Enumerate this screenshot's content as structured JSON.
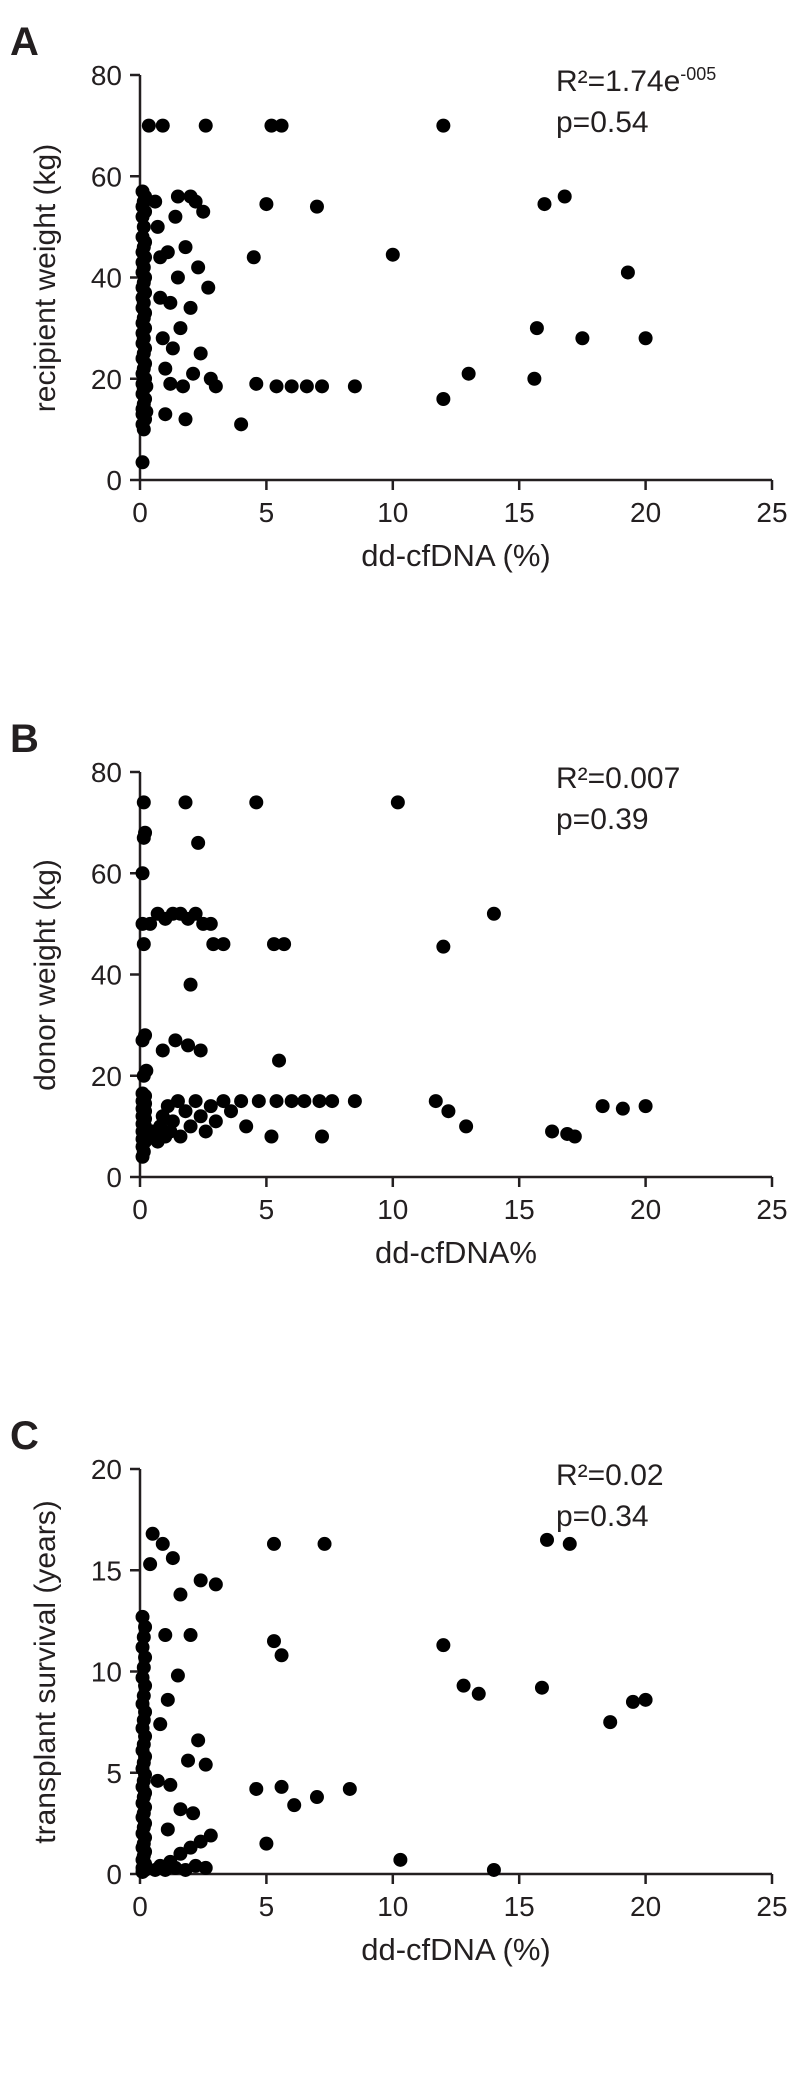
{
  "figure": {
    "background": "#ffffff",
    "point_color": "#000000",
    "axis_color": "#231f20"
  },
  "chart_data": [
    {
      "type": "scatter",
      "panel": "A",
      "title": "",
      "xlabel": "dd-cfDNA (%)",
      "ylabel": "recipient weight (kg)",
      "xlim": [
        0,
        25
      ],
      "ylim": [
        0,
        80
      ],
      "xticks": [
        0,
        5,
        10,
        15,
        20,
        25
      ],
      "yticks": [
        0,
        20,
        40,
        60,
        80
      ],
      "grid": false,
      "legend": null,
      "annotation": {
        "r2_base": "R²=1.74e",
        "r2_exp": "-005",
        "p": "p=0.54"
      },
      "points": [
        [
          0.1,
          3.5
        ],
        [
          0.15,
          10
        ],
        [
          0.1,
          11
        ],
        [
          0.2,
          12
        ],
        [
          0.1,
          13
        ],
        [
          0.25,
          13.5
        ],
        [
          0.1,
          14
        ],
        [
          0.15,
          15
        ],
        [
          0.2,
          16
        ],
        [
          0.1,
          17
        ],
        [
          0.15,
          18
        ],
        [
          0.25,
          18.5
        ],
        [
          0.1,
          19
        ],
        [
          0.2,
          20
        ],
        [
          0.1,
          21
        ],
        [
          0.15,
          22
        ],
        [
          0.2,
          23
        ],
        [
          0.1,
          24
        ],
        [
          0.15,
          25
        ],
        [
          0.2,
          26
        ],
        [
          0.1,
          27
        ],
        [
          0.15,
          28
        ],
        [
          0.1,
          29
        ],
        [
          0.2,
          30
        ],
        [
          0.1,
          31
        ],
        [
          0.15,
          32
        ],
        [
          0.2,
          33
        ],
        [
          0.1,
          34
        ],
        [
          0.15,
          35
        ],
        [
          0.1,
          36
        ],
        [
          0.2,
          37
        ],
        [
          0.1,
          38
        ],
        [
          0.15,
          39
        ],
        [
          0.2,
          40
        ],
        [
          0.1,
          41
        ],
        [
          0.15,
          42
        ],
        [
          0.1,
          43
        ],
        [
          0.2,
          44
        ],
        [
          0.1,
          45
        ],
        [
          0.15,
          46
        ],
        [
          0.2,
          47
        ],
        [
          0.1,
          48
        ],
        [
          0.15,
          50
        ],
        [
          0.1,
          52
        ],
        [
          0.2,
          53
        ],
        [
          0.1,
          54
        ],
        [
          0.15,
          55
        ],
        [
          0.2,
          56
        ],
        [
          0.1,
          57
        ],
        [
          0.35,
          70
        ],
        [
          0.9,
          70
        ],
        [
          0.6,
          55
        ],
        [
          0.7,
          50
        ],
        [
          0.8,
          44
        ],
        [
          0.8,
          36
        ],
        [
          0.9,
          28
        ],
        [
          1.0,
          22
        ],
        [
          1.0,
          13
        ],
        [
          1.1,
          45
        ],
        [
          1.2,
          35
        ],
        [
          1.2,
          19
        ],
        [
          1.3,
          26
        ],
        [
          1.4,
          52
        ],
        [
          1.5,
          56
        ],
        [
          1.5,
          40
        ],
        [
          1.6,
          30
        ],
        [
          1.7,
          18.5
        ],
        [
          1.8,
          46
        ],
        [
          1.8,
          12
        ],
        [
          2.0,
          56
        ],
        [
          2.0,
          34
        ],
        [
          2.1,
          21
        ],
        [
          2.2,
          55
        ],
        [
          2.3,
          42
        ],
        [
          2.4,
          25
        ],
        [
          2.5,
          53
        ],
        [
          2.6,
          70
        ],
        [
          2.7,
          38
        ],
        [
          2.8,
          20
        ],
        [
          3.0,
          18.5
        ],
        [
          4.0,
          11
        ],
        [
          4.5,
          44
        ],
        [
          4.6,
          19
        ],
        [
          5.0,
          54.5
        ],
        [
          5.2,
          70
        ],
        [
          5.6,
          70
        ],
        [
          5.4,
          18.5
        ],
        [
          6.0,
          18.5
        ],
        [
          6.6,
          18.5
        ],
        [
          7.0,
          54
        ],
        [
          7.2,
          18.5
        ],
        [
          8.5,
          18.5
        ],
        [
          10.0,
          44.5
        ],
        [
          12.0,
          70
        ],
        [
          12.0,
          16
        ],
        [
          13.0,
          21
        ],
        [
          15.6,
          20
        ],
        [
          15.7,
          30
        ],
        [
          16.0,
          54.5
        ],
        [
          16.8,
          56
        ],
        [
          17.5,
          28
        ],
        [
          19.3,
          41
        ],
        [
          20.0,
          28
        ]
      ]
    },
    {
      "type": "scatter",
      "panel": "B",
      "title": "",
      "xlabel": "dd-cfDNA%",
      "ylabel": "donor weight (kg)",
      "xlim": [
        0,
        25
      ],
      "ylim": [
        0,
        80
      ],
      "xticks": [
        0,
        5,
        10,
        15,
        20,
        25
      ],
      "yticks": [
        0,
        20,
        40,
        60,
        80
      ],
      "grid": false,
      "legend": null,
      "annotation": {
        "r2_base": "R²=0.007",
        "r2_exp": "",
        "p": "p=0.39"
      },
      "points": [
        [
          0.1,
          4
        ],
        [
          0.15,
          5
        ],
        [
          0.1,
          6
        ],
        [
          0.2,
          7
        ],
        [
          0.1,
          7.5
        ],
        [
          0.15,
          8
        ],
        [
          0.2,
          8.5
        ],
        [
          0.1,
          9
        ],
        [
          0.15,
          9.5
        ],
        [
          0.2,
          10
        ],
        [
          0.1,
          10.5
        ],
        [
          0.15,
          11
        ],
        [
          0.2,
          11.5
        ],
        [
          0.1,
          12
        ],
        [
          0.15,
          12.5
        ],
        [
          0.2,
          13
        ],
        [
          0.1,
          13.5
        ],
        [
          0.15,
          14
        ],
        [
          0.2,
          14.5
        ],
        [
          0.1,
          15
        ],
        [
          0.15,
          15.5
        ],
        [
          0.2,
          16
        ],
        [
          0.1,
          16.5
        ],
        [
          0.15,
          20
        ],
        [
          0.25,
          21
        ],
        [
          0.1,
          27
        ],
        [
          0.2,
          28
        ],
        [
          0.15,
          46
        ],
        [
          0.1,
          50
        ],
        [
          0.1,
          60
        ],
        [
          0.15,
          67
        ],
        [
          0.2,
          68
        ],
        [
          0.15,
          74
        ],
        [
          0.4,
          50
        ],
        [
          0.7,
          52
        ],
        [
          1.0,
          51
        ],
        [
          1.3,
          52
        ],
        [
          1.6,
          52
        ],
        [
          1.9,
          51
        ],
        [
          2.2,
          52
        ],
        [
          2.5,
          50
        ],
        [
          2.8,
          50
        ],
        [
          1.8,
          74
        ],
        [
          4.6,
          74
        ],
        [
          10.2,
          74
        ],
        [
          2.3,
          66
        ],
        [
          2.0,
          38
        ],
        [
          14.0,
          52
        ],
        [
          12.0,
          45.5
        ],
        [
          2.9,
          46
        ],
        [
          3.3,
          46
        ],
        [
          5.3,
          46
        ],
        [
          5.7,
          46
        ],
        [
          0.9,
          25
        ],
        [
          1.4,
          27
        ],
        [
          1.9,
          26
        ],
        [
          2.4,
          25
        ],
        [
          5.5,
          23
        ],
        [
          0.5,
          9
        ],
        [
          0.6,
          8
        ],
        [
          0.7,
          7
        ],
        [
          0.8,
          10
        ],
        [
          0.9,
          12
        ],
        [
          1.0,
          8
        ],
        [
          1.1,
          14
        ],
        [
          1.2,
          9
        ],
        [
          1.3,
          11
        ],
        [
          1.5,
          15
        ],
        [
          1.6,
          8
        ],
        [
          1.8,
          13
        ],
        [
          2.0,
          10
        ],
        [
          2.2,
          15
        ],
        [
          2.4,
          12
        ],
        [
          2.6,
          9
        ],
        [
          2.8,
          14
        ],
        [
          3.0,
          11
        ],
        [
          3.3,
          15
        ],
        [
          3.6,
          13
        ],
        [
          4.0,
          15
        ],
        [
          4.2,
          10
        ],
        [
          4.7,
          15
        ],
        [
          5.4,
          15
        ],
        [
          6.0,
          15
        ],
        [
          6.5,
          15
        ],
        [
          7.1,
          15
        ],
        [
          7.6,
          15
        ],
        [
          8.5,
          15
        ],
        [
          5.2,
          8
        ],
        [
          7.2,
          8
        ],
        [
          11.7,
          15
        ],
        [
          12.2,
          13
        ],
        [
          12.9,
          10
        ],
        [
          16.3,
          9
        ],
        [
          16.9,
          8.5
        ],
        [
          17.2,
          8
        ],
        [
          18.3,
          14
        ],
        [
          19.1,
          13.5
        ],
        [
          20.0,
          14
        ]
      ]
    },
    {
      "type": "scatter",
      "panel": "C",
      "title": "",
      "xlabel": "dd-cfDNA (%)",
      "ylabel": "transplant survival (years)",
      "xlim": [
        0,
        25
      ],
      "ylim": [
        0,
        20
      ],
      "xticks": [
        0,
        5,
        10,
        15,
        20,
        25
      ],
      "yticks": [
        0,
        5,
        10,
        15,
        20
      ],
      "grid": false,
      "legend": null,
      "annotation": {
        "r2_base": "R²=0.02",
        "r2_exp": "",
        "p": "p=0.34"
      },
      "points": [
        [
          0.1,
          0.1
        ],
        [
          0.2,
          0.2
        ],
        [
          0.1,
          0.3
        ],
        [
          0.15,
          0.4
        ],
        [
          0.2,
          0.5
        ],
        [
          0.1,
          0.7
        ],
        [
          0.15,
          0.9
        ],
        [
          0.2,
          1.1
        ],
        [
          0.1,
          1.3
        ],
        [
          0.15,
          1.5
        ],
        [
          0.2,
          1.8
        ],
        [
          0.1,
          2.0
        ],
        [
          0.15,
          2.3
        ],
        [
          0.2,
          2.5
        ],
        [
          0.1,
          2.8
        ],
        [
          0.15,
          3.0
        ],
        [
          0.2,
          3.3
        ],
        [
          0.1,
          3.5
        ],
        [
          0.15,
          3.8
        ],
        [
          0.2,
          4.0
        ],
        [
          0.1,
          4.3
        ],
        [
          0.15,
          4.6
        ],
        [
          0.2,
          4.9
        ],
        [
          0.1,
          5.2
        ],
        [
          0.15,
          5.5
        ],
        [
          0.2,
          5.8
        ],
        [
          0.1,
          6.1
        ],
        [
          0.15,
          6.4
        ],
        [
          0.2,
          6.8
        ],
        [
          0.1,
          7.2
        ],
        [
          0.15,
          7.6
        ],
        [
          0.2,
          8.0
        ],
        [
          0.1,
          8.4
        ],
        [
          0.15,
          8.8
        ],
        [
          0.2,
          9.3
        ],
        [
          0.1,
          9.7
        ],
        [
          0.15,
          10.2
        ],
        [
          0.2,
          10.7
        ],
        [
          0.1,
          11.2
        ],
        [
          0.15,
          11.7
        ],
        [
          0.2,
          12.2
        ],
        [
          0.1,
          12.7
        ],
        [
          0.4,
          15.3
        ],
        [
          0.5,
          16.8
        ],
        [
          0.9,
          16.3
        ],
        [
          1.3,
          15.6
        ],
        [
          2.4,
          14.5
        ],
        [
          3.0,
          14.3
        ],
        [
          1.6,
          13.8
        ],
        [
          1.0,
          11.8
        ],
        [
          2.0,
          11.8
        ],
        [
          1.5,
          9.8
        ],
        [
          0.6,
          0.2
        ],
        [
          0.8,
          0.4
        ],
        [
          1.0,
          0.2
        ],
        [
          1.2,
          0.6
        ],
        [
          1.4,
          0.3
        ],
        [
          1.6,
          1.0
        ],
        [
          1.8,
          0.2
        ],
        [
          2.0,
          1.3
        ],
        [
          2.2,
          0.4
        ],
        [
          2.4,
          1.6
        ],
        [
          2.6,
          0.3
        ],
        [
          2.8,
          1.9
        ],
        [
          1.1,
          2.2
        ],
        [
          1.6,
          3.2
        ],
        [
          2.1,
          3.0
        ],
        [
          0.7,
          4.6
        ],
        [
          1.2,
          4.4
        ],
        [
          1.9,
          5.6
        ],
        [
          2.6,
          5.4
        ],
        [
          2.3,
          6.6
        ],
        [
          0.8,
          7.4
        ],
        [
          1.1,
          8.6
        ],
        [
          4.6,
          4.2
        ],
        [
          5.0,
          1.5
        ],
        [
          5.3,
          16.3
        ],
        [
          5.3,
          11.5
        ],
        [
          5.6,
          10.8
        ],
        [
          5.6,
          4.3
        ],
        [
          6.1,
          3.4
        ],
        [
          7.0,
          3.8
        ],
        [
          7.3,
          16.3
        ],
        [
          8.3,
          4.2
        ],
        [
          10.3,
          0.7
        ],
        [
          12.0,
          11.3
        ],
        [
          12.8,
          9.3
        ],
        [
          13.4,
          8.9
        ],
        [
          14.0,
          0.2
        ],
        [
          15.9,
          9.2
        ],
        [
          16.1,
          16.5
        ],
        [
          17.0,
          16.3
        ],
        [
          18.6,
          7.5
        ],
        [
          19.5,
          8.5
        ],
        [
          20.0,
          8.6
        ]
      ]
    }
  ]
}
